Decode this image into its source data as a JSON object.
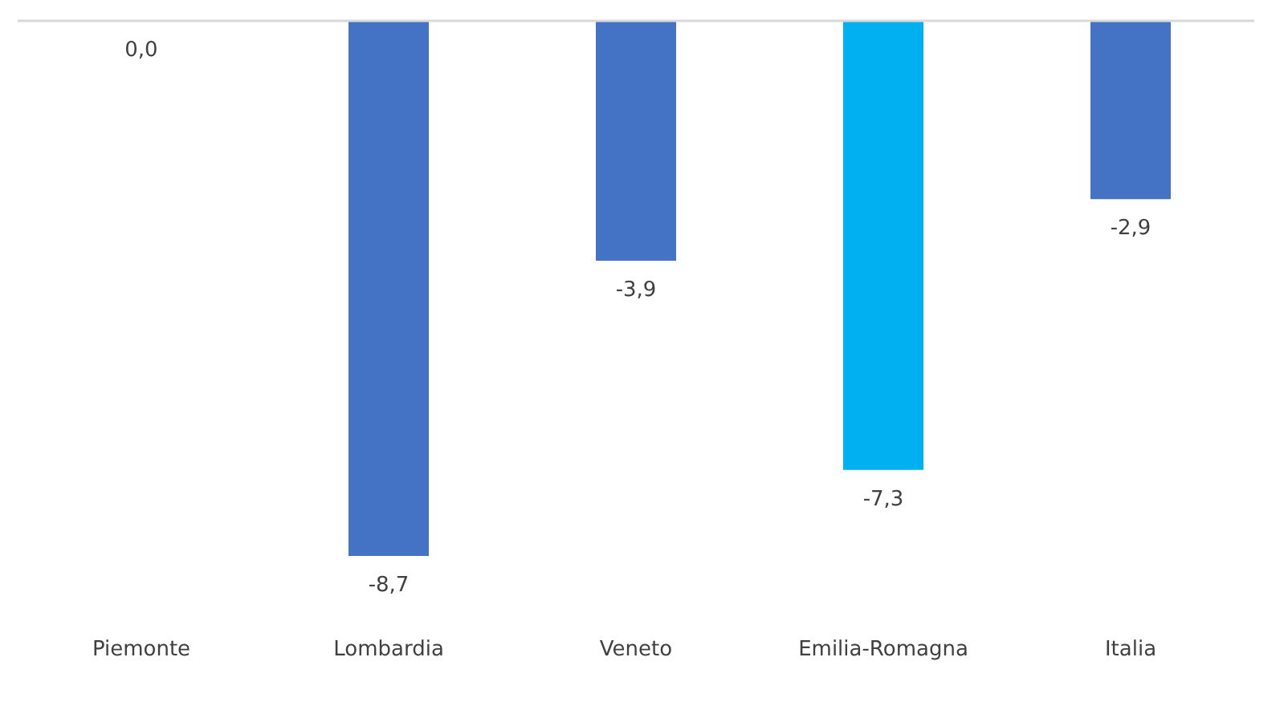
{
  "chart_data": {
    "type": "bar",
    "categories": [
      "Piemonte",
      "Lombardia",
      "Veneto",
      "Emilia-Romagna",
      "Italia"
    ],
    "values": [
      0.0,
      -8.7,
      -3.9,
      -7.3,
      -2.9
    ],
    "value_labels": [
      "0,0",
      "-8,7",
      "-3,9",
      "-7,3",
      "-2,9"
    ],
    "colors": [
      "#4472c4",
      "#4472c4",
      "#4472c4",
      "#00b0f0",
      "#4472c4"
    ],
    "grid": false
  }
}
